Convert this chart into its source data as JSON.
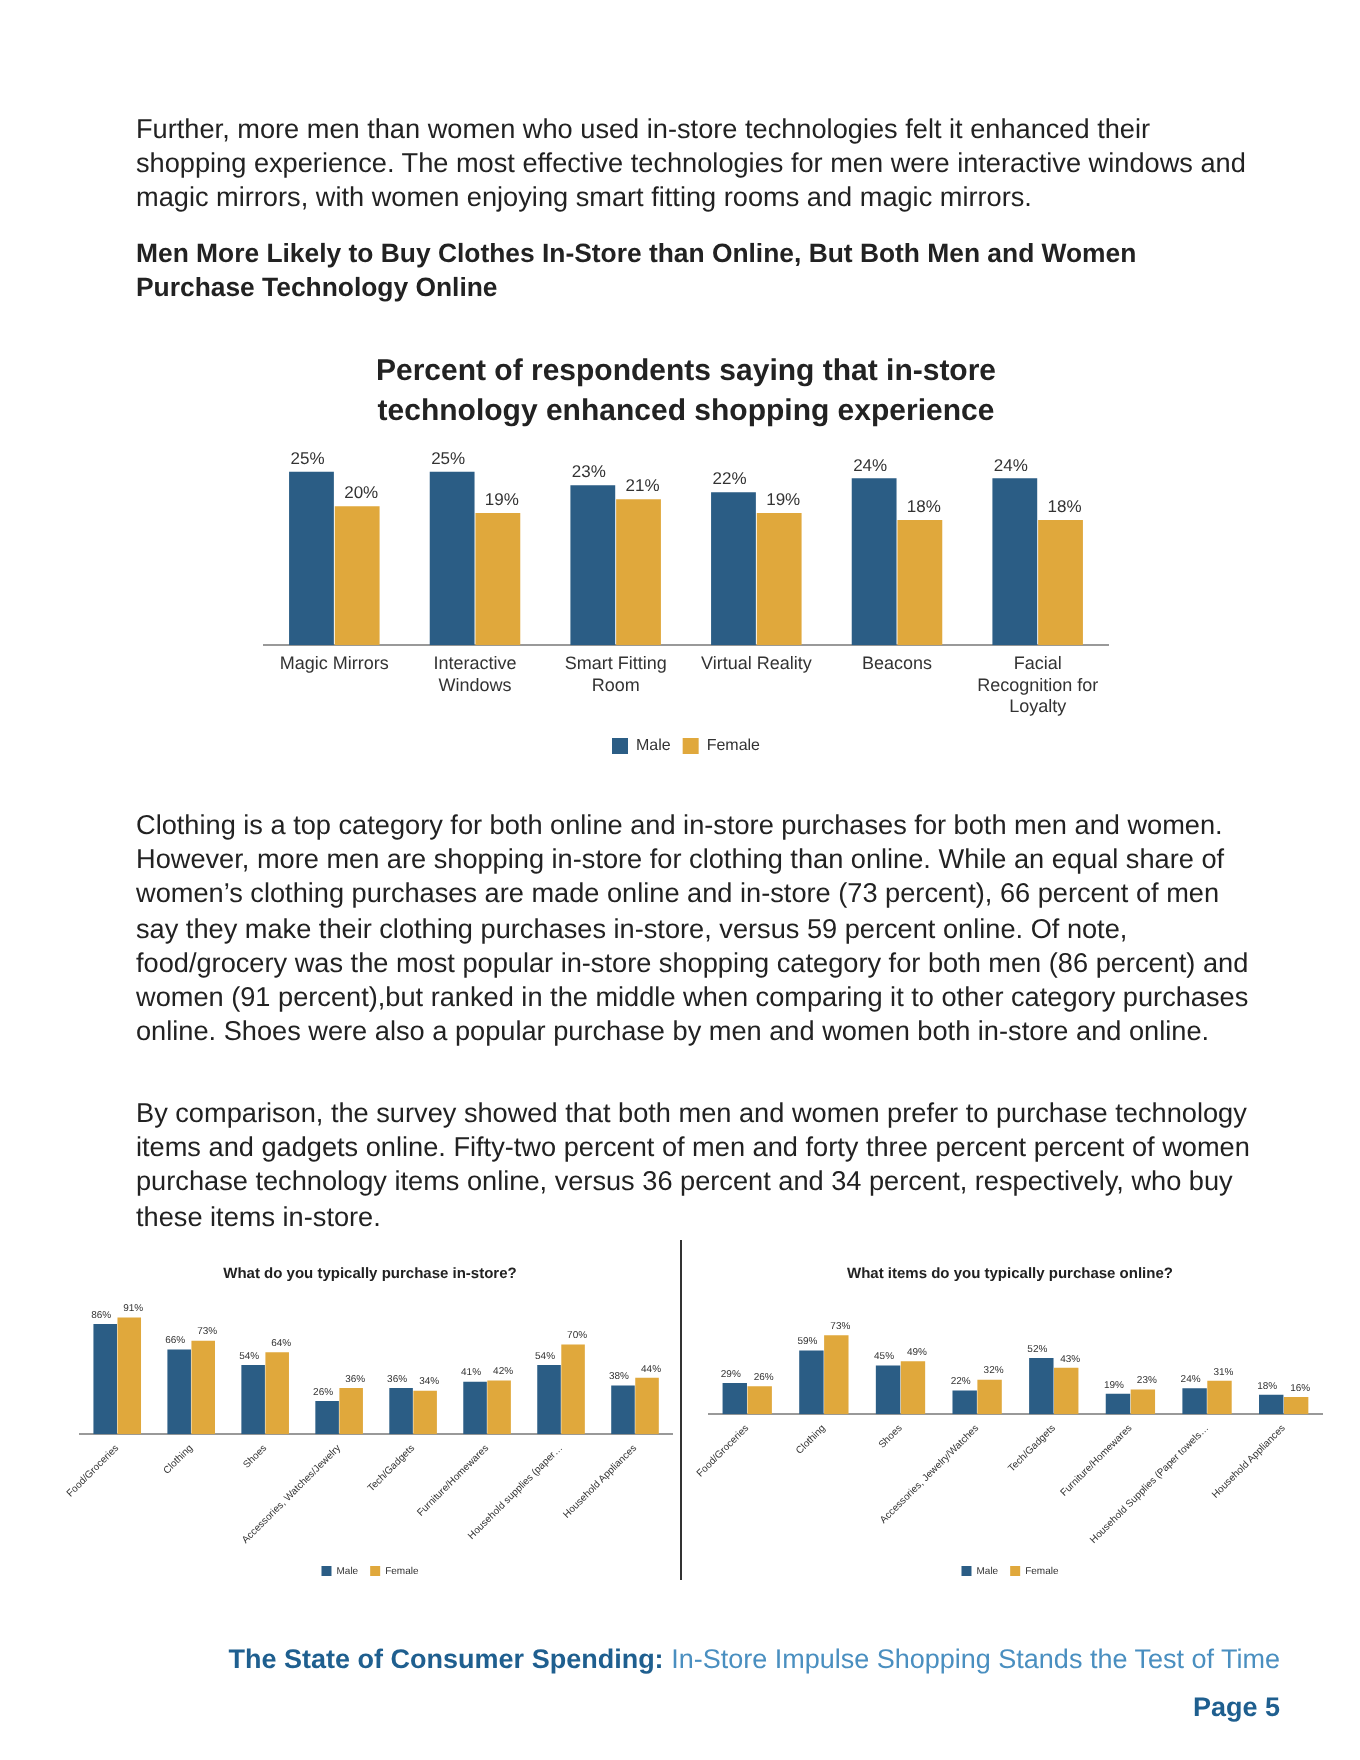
{
  "chart_data": [
    {
      "type": "bar",
      "title": "Percent of respondents saying that in-store technology enhanced shopping experience",
      "annotations": [
        "Further, more men than women who used in-store technologies felt it enhanced their shopping experience. The most effective technologies for men were interactive windows and magic mirrors, with women enjoying smart fitting rooms and magic mirrors.",
        "Men More Likely to Buy Clothes In-Store than Online, But Both Men and Women Purchase Technology Online"
      ],
      "categories": [
        "Magic Mirrors",
        "Interactive Windows",
        "Smart Fitting Room",
        "Virtual Reality",
        "Beacons",
        "Facial Recognition for Loyalty"
      ],
      "series": [
        {
          "name": "Male",
          "color": "#2b5d85",
          "values": [
            25,
            25,
            23,
            22,
            24,
            24
          ],
          "value_labels": [
            "25%",
            "25%",
            "23%",
            "22%",
            "24%",
            "24%"
          ]
        },
        {
          "name": "Female",
          "color": "#e0a83c",
          "values": [
            20,
            19,
            21,
            19,
            18,
            18
          ],
          "value_labels": [
            "20%",
            "19%",
            "21%",
            "19%",
            "18%",
            "18%"
          ]
        }
      ],
      "legend": "bottom",
      "tick_labels": "x"
    },
    {
      "type": "bar",
      "title": "What do you typically purchase in-store?",
      "annotations": [
        "Clothing is a top category for both online and in-store purchases for both men and women. However, more men are shopping in-store for clothing than online. While an equal share of women’s clothing purchases are made online and in-store (73 percent), 66 percent of men say they make their clothing purchases in-store, versus 59 percent online. Of note, food/grocery was the most popular in-store shopping category for both men (86 percent) and women (91 percent),but ranked in the middle when comparing it to other category purchases online. Shoes were also a popular purchase by men and women both in-store and online.",
        "By comparison, the survey showed that both men and women prefer to purchase technology items and gadgets online. Fifty-two percent of men and forty three percent percent of women purchase technology items online, versus 36 percent and 34 percent, respectively, who buy these items in-store."
      ],
      "categories": [
        "Food/Groceries",
        "Clothing",
        "Shoes",
        "Accessories, Watches/Jewelry",
        "Tech/Gadgets",
        "Furniture/Homewares",
        "Household supplies (paper…",
        "Household Appliances"
      ],
      "series": [
        {
          "name": "Male",
          "color": "#2b5d85",
          "values": [
            86,
            66,
            54,
            26,
            36,
            41,
            54,
            38
          ],
          "value_labels": [
            "86%",
            "66%",
            "54%",
            "26%",
            "36%",
            "41%",
            "54%",
            "38%"
          ]
        },
        {
          "name": "Female",
          "color": "#e0a83c",
          "values": [
            91,
            73,
            64,
            36,
            34,
            42,
            70,
            44
          ],
          "value_labels": [
            "91%",
            "73%",
            "64%",
            "36%",
            "34%",
            "42%",
            "70%",
            "44%"
          ]
        }
      ],
      "legend": "bottom",
      "tick_labels": "x"
    },
    {
      "type": "bar",
      "title": "What items do you typically purchase online?",
      "annotations": [
        "The State of Consumer Spending: In-Store Impulse Shopping Stands the Test of Time",
        "Page 5"
      ],
      "categories": [
        "Food/Groceries",
        "Clothing",
        "Shoes",
        "Accessories, Jewelry/Watches",
        "Tech/Gadgets",
        "Furniture/Homewares",
        "Household Supplies (Paper towels…",
        "Household Appliances"
      ],
      "series": [
        {
          "name": "Male",
          "color": "#2b5d85",
          "values": [
            29,
            59,
            45,
            22,
            52,
            19,
            24,
            18
          ],
          "value_labels": [
            "29%",
            "59%",
            "45%",
            "22%",
            "52%",
            "19%",
            "24%",
            "18%"
          ]
        },
        {
          "name": "Female",
          "color": "#e0a83c",
          "values": [
            26,
            73,
            49,
            32,
            43,
            23,
            31,
            16
          ],
          "value_labels": [
            "26%",
            "73%",
            "49%",
            "32%",
            "43%",
            "23%",
            "31%",
            "16%"
          ]
        }
      ],
      "legend": "bottom",
      "tick_labels": "x"
    }
  ]
}
